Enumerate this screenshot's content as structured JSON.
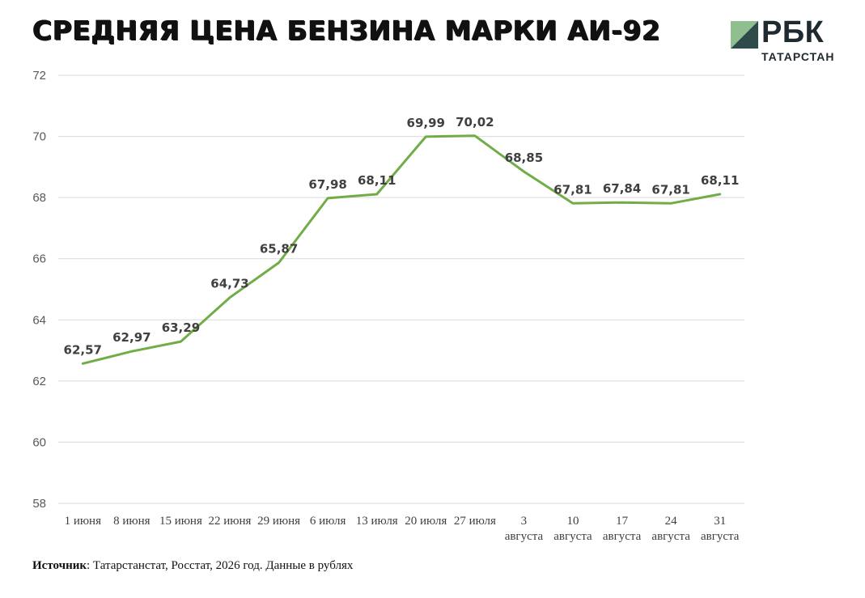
{
  "title": "СРЕДНЯЯ ЦЕНА БЕНЗИНА МАРКИ АИ-92",
  "logo": {
    "brand": "РБК",
    "region": "ТАТАРСТАН"
  },
  "source": {
    "label": "Источник",
    "text": ": Татарстанстат, Росстат, 2026 год. Данные в рублях"
  },
  "colors": {
    "line": "#70ad47",
    "grid": "#d9d9d9",
    "logo_mark_light": "#8fbf8f",
    "logo_mark_dark": "#2e4a4a"
  },
  "chart_data": {
    "type": "line",
    "title": "СРЕДНЯЯ ЦЕНА БЕНЗИНА МАРКИ АИ-92",
    "xlabel": "",
    "ylabel": "",
    "ylim": [
      58,
      72
    ],
    "yticks": [
      "58",
      "60",
      "62",
      "64",
      "66",
      "68",
      "70",
      "72"
    ],
    "grid": true,
    "legend": "none",
    "categories": [
      [
        "1 июня"
      ],
      [
        "8 июня"
      ],
      [
        "15 июня"
      ],
      [
        "22 июня"
      ],
      [
        "29 июня"
      ],
      [
        "6 июля"
      ],
      [
        "13 июля"
      ],
      [
        "20 июля"
      ],
      [
        "27 июля"
      ],
      [
        "3",
        "августа"
      ],
      [
        "10",
        "августа"
      ],
      [
        "17",
        "августа"
      ],
      [
        "24",
        "августа"
      ],
      [
        "31",
        "августа"
      ]
    ],
    "series": [
      {
        "values": [
          62.57,
          62.97,
          63.29,
          64.73,
          65.87,
          67.98,
          68.11,
          69.99,
          70.02,
          68.85,
          67.81,
          67.84,
          67.81,
          68.11
        ],
        "labels": [
          "62,57",
          "62,97",
          "63,29",
          "64,73",
          "65,87",
          "67,98",
          "68,11",
          "69,99",
          "70,02",
          "68,85",
          "67,81",
          "67,84",
          "67,81",
          "68,11"
        ]
      }
    ]
  }
}
